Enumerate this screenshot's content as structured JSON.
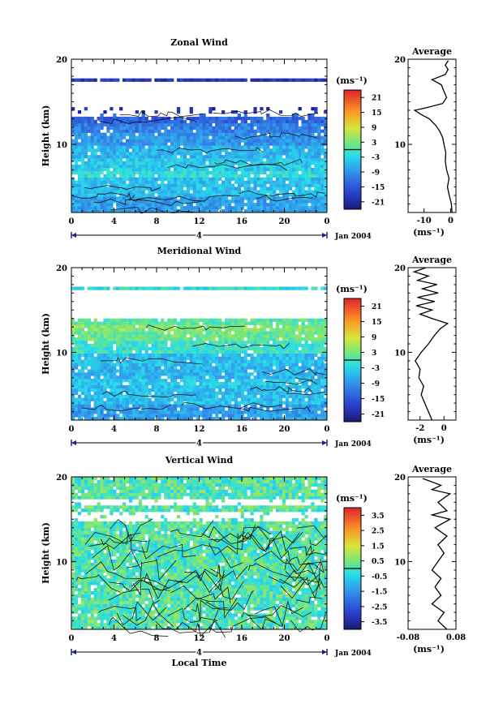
{
  "chart_data": [
    {
      "type": "heatmap",
      "title": "Zonal Wind",
      "ylabel": "Height (km)",
      "xlabel": "",
      "xlim": [
        0,
        24
      ],
      "ylim": [
        2,
        20
      ],
      "x_ticks": [
        "0",
        "4",
        "8",
        "12",
        "16",
        "20",
        "0"
      ],
      "y_ticks": [
        "20",
        "10"
      ],
      "y_tick_values": [
        20,
        10
      ],
      "date_marker": "4",
      "date_label": "Jan 2004",
      "colorbar": {
        "unit_label": "(ms⁻¹)",
        "ticks": [
          "21",
          "15",
          "9",
          "3",
          "-3",
          "-9",
          "-15",
          "-21"
        ],
        "tick_values": [
          21,
          15,
          9,
          3,
          -3,
          -9,
          -15,
          -21
        ],
        "range": [
          -24,
          24
        ]
      },
      "field": {
        "bands": [
          {
            "z0": 2,
            "z1": 4,
            "v": -8
          },
          {
            "z0": 4,
            "z1": 6,
            "v": -5
          },
          {
            "z0": 6,
            "z1": 7,
            "v": -2
          },
          {
            "z0": 7,
            "z1": 8.5,
            "v": -4
          },
          {
            "z0": 8.5,
            "z1": 10,
            "v": -6
          },
          {
            "z0": 10,
            "z1": 11.5,
            "v": -9
          },
          {
            "z0": 11.5,
            "z1": 12.5,
            "v": -11
          },
          {
            "z0": 12.5,
            "z1": 13.5,
            "v": -14
          },
          {
            "z0": 13.5,
            "z1": 14.2,
            "v": -20
          },
          {
            "z0": 17.5,
            "z1": 17.9,
            "v": -19
          }
        ],
        "gaps": [
          [
            13.3,
            17.4
          ]
        ],
        "noise": 3
      },
      "average": {
        "xlim": [
          -16,
          2
        ],
        "x_ticks": [
          "-10",
          "0"
        ],
        "x_tick_values": [
          -10,
          0
        ],
        "title": "Average",
        "unit_label": "(ms⁻¹)",
        "profile": [
          {
            "z": 2.0,
            "v": 0.5
          },
          {
            "z": 3.0,
            "v": 0.3
          },
          {
            "z": 4.0,
            "v": -0.5
          },
          {
            "z": 5.0,
            "v": -1.2
          },
          {
            "z": 6.0,
            "v": -0.6
          },
          {
            "z": 7.0,
            "v": -1.5
          },
          {
            "z": 8.0,
            "v": -2.0
          },
          {
            "z": 9.0,
            "v": -1.8
          },
          {
            "z": 10.0,
            "v": -2.5
          },
          {
            "z": 10.8,
            "v": -3.0
          },
          {
            "z": 11.5,
            "v": -4.0
          },
          {
            "z": 12.2,
            "v": -5.5
          },
          {
            "z": 13.0,
            "v": -8.0
          },
          {
            "z": 13.5,
            "v": -11.0
          },
          {
            "z": 14.0,
            "v": -13.5
          },
          {
            "z": 14.3,
            "v": -9.0
          },
          {
            "z": 14.8,
            "v": -3.0
          },
          {
            "z": 15.5,
            "v": -1.5
          },
          {
            "z": 16.2,
            "v": -2.5
          },
          {
            "z": 17.0,
            "v": -3.5
          },
          {
            "z": 17.6,
            "v": -7.0
          },
          {
            "z": 18.2,
            "v": -2.0
          },
          {
            "z": 18.8,
            "v": -1.0
          },
          {
            "z": 19.3,
            "v": -2.0
          },
          {
            "z": 19.8,
            "v": -1.0
          }
        ]
      }
    },
    {
      "type": "heatmap",
      "title": "Meridional Wind",
      "ylabel": "Height (km)",
      "xlabel": "",
      "xlim": [
        0,
        24
      ],
      "ylim": [
        2,
        20
      ],
      "x_ticks": [
        "0",
        "4",
        "8",
        "12",
        "16",
        "20",
        "0"
      ],
      "y_ticks": [
        "20",
        "10"
      ],
      "y_tick_values": [
        20,
        10
      ],
      "date_marker": "4",
      "date_label": "Jan 2004",
      "colorbar": {
        "unit_label": "(ms⁻¹)",
        "ticks": [
          "21",
          "15",
          "9",
          "3",
          "-3",
          "-9",
          "-15",
          "-21"
        ],
        "tick_values": [
          21,
          15,
          9,
          3,
          -3,
          -9,
          -15,
          -21
        ],
        "range": [
          -24,
          24
        ]
      },
      "field": {
        "bands": [
          {
            "z0": 2,
            "z1": 4,
            "v": -8
          },
          {
            "z0": 4,
            "z1": 6,
            "v": -5
          },
          {
            "z0": 6,
            "z1": 7,
            "v": -4
          },
          {
            "z0": 7,
            "z1": 8.5,
            "v": -6
          },
          {
            "z0": 8.5,
            "z1": 10,
            "v": -5
          },
          {
            "z0": 10,
            "z1": 11.5,
            "v": -1
          },
          {
            "z0": 11.5,
            "z1": 12.5,
            "v": 2
          },
          {
            "z0": 12.5,
            "z1": 13.2,
            "v": 4
          },
          {
            "z0": 13.2,
            "z1": 14.0,
            "v": 1
          },
          {
            "z0": 17.5,
            "z1": 17.8,
            "v": -2
          }
        ],
        "gaps": [
          [
            14.0,
            17.3
          ]
        ],
        "noise": 3
      },
      "average": {
        "xlim": [
          -3,
          1
        ],
        "x_ticks": [
          "-2",
          "0"
        ],
        "x_tick_values": [
          -2,
          0
        ],
        "title": "Average",
        "unit_label": "(ms⁻¹)",
        "profile": [
          {
            "z": 2.0,
            "v": -1.0
          },
          {
            "z": 3.0,
            "v": -1.3
          },
          {
            "z": 4.0,
            "v": -1.6
          },
          {
            "z": 5.0,
            "v": -1.9
          },
          {
            "z": 6.0,
            "v": -1.7
          },
          {
            "z": 7.0,
            "v": -2.1
          },
          {
            "z": 8.0,
            "v": -2.0
          },
          {
            "z": 9.0,
            "v": -2.4
          },
          {
            "z": 10.0,
            "v": -1.9
          },
          {
            "z": 11.0,
            "v": -1.3
          },
          {
            "z": 12.0,
            "v": -0.8
          },
          {
            "z": 12.8,
            "v": -0.3
          },
          {
            "z": 13.4,
            "v": 0.3
          },
          {
            "z": 14.0,
            "v": -1.0
          },
          {
            "z": 14.5,
            "v": -2.0
          },
          {
            "z": 15.0,
            "v": -1.0
          },
          {
            "z": 15.5,
            "v": -2.3
          },
          {
            "z": 16.0,
            "v": -0.8
          },
          {
            "z": 16.5,
            "v": -2.2
          },
          {
            "z": 17.0,
            "v": -0.5
          },
          {
            "z": 17.5,
            "v": -1.8
          },
          {
            "z": 18.0,
            "v": -0.6
          },
          {
            "z": 18.5,
            "v": -2.2
          },
          {
            "z": 19.0,
            "v": -1.3
          },
          {
            "z": 19.5,
            "v": -2.5
          },
          {
            "z": 20.0,
            "v": -1.5
          }
        ]
      }
    },
    {
      "type": "heatmap",
      "title": "Vertical Wind",
      "ylabel": "Height (km)",
      "xlabel": "Local Time",
      "xlim": [
        0,
        24
      ],
      "ylim": [
        2,
        20
      ],
      "x_ticks": [
        "0",
        "4",
        "8",
        "12",
        "16",
        "20",
        "0"
      ],
      "y_ticks": [
        "20",
        "10"
      ],
      "y_tick_values": [
        20,
        10
      ],
      "date_marker": "4",
      "date_label": "Jan 2004",
      "colorbar": {
        "unit_label": "(ms⁻¹)",
        "ticks": [
          "3.5",
          "2.5",
          "1.5",
          "0.5",
          "-0.5",
          "-1.5",
          "-2.5",
          "-3.5"
        ],
        "tick_values": [
          3.5,
          2.5,
          1.5,
          0.5,
          -0.5,
          -1.5,
          -2.5,
          -3.5
        ],
        "range": [
          -4,
          4
        ]
      },
      "field": {
        "bands": [
          {
            "z0": 2,
            "z1": 20,
            "v": 0.1
          }
        ],
        "gaps": [
          [
            14.8,
            15.8
          ],
          [
            16.8,
            17.5
          ]
        ],
        "noise": 0.8
      },
      "average": {
        "xlim": [
          -0.08,
          0.08
        ],
        "x_ticks": [
          "-0.08",
          "0.08"
        ],
        "x_tick_values": [
          -0.08,
          0.08
        ],
        "title": "Average",
        "unit_label": "(ms⁻¹)",
        "profile": [
          {
            "z": 2.0,
            "v": 0.05
          },
          {
            "z": 3.0,
            "v": 0.02
          },
          {
            "z": 4.0,
            "v": 0.04
          },
          {
            "z": 5.0,
            "v": 0.0
          },
          {
            "z": 6.0,
            "v": 0.03
          },
          {
            "z": 7.0,
            "v": 0.01
          },
          {
            "z": 8.0,
            "v": 0.03
          },
          {
            "z": 9.0,
            "v": 0.0
          },
          {
            "z": 10.0,
            "v": 0.02
          },
          {
            "z": 11.0,
            "v": 0.04
          },
          {
            "z": 12.0,
            "v": 0.02
          },
          {
            "z": 13.0,
            "v": 0.05
          },
          {
            "z": 14.0,
            "v": 0.01
          },
          {
            "z": 15.0,
            "v": 0.06
          },
          {
            "z": 15.5,
            "v": 0.0
          },
          {
            "z": 16.0,
            "v": 0.05
          },
          {
            "z": 17.0,
            "v": 0.02
          },
          {
            "z": 18.0,
            "v": 0.06
          },
          {
            "z": 18.5,
            "v": 0.0
          },
          {
            "z": 19.0,
            "v": 0.03
          },
          {
            "z": 19.8,
            "v": -0.03
          }
        ]
      }
    }
  ]
}
